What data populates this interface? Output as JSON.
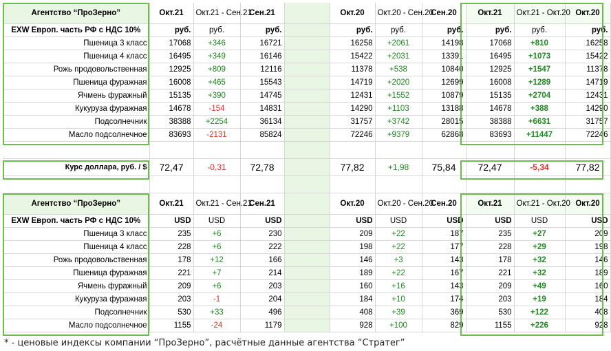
{
  "headers": {
    "title": "Агентство “ПроЗерно”",
    "col1": "Окт.21",
    "col2": "Окт.21 - Сен.21",
    "col3": "Сен.21",
    "col5": "Окт.20",
    "col6": "Окт.20 - Сен.20",
    "col7": "Сен.20",
    "col8": "Окт.21",
    "col9": "Окт.21 - Окт.20",
    "col10": "Окт.20"
  },
  "rub": {
    "exw": "EXW Европ. часть РФ с НДС 10%",
    "unit": "руб.",
    "rows": [
      {
        "name": "Пшеница 3 класс",
        "c1": "17068",
        "c2": "+346",
        "c3": "16721",
        "c5": "16258",
        "c6": "+2061",
        "c7": "14198",
        "c8": "17068",
        "c9": "+810",
        "c10": "16258"
      },
      {
        "name": "Пшеница 4 класс",
        "c1": "16495",
        "c2": "+349",
        "c3": "16146",
        "c5": "15422",
        "c6": "+2031",
        "c7": "13391",
        "c8": "16495",
        "c9": "+1073",
        "c10": "15422"
      },
      {
        "name": "Рожь продовольственная",
        "c1": "12925",
        "c2": "+809",
        "c3": "12116",
        "c5": "11378",
        "c6": "+538",
        "c7": "10840",
        "c8": "12925",
        "c9": "+1547",
        "c10": "11378"
      },
      {
        "name": "Пшеница фуражная",
        "c1": "16008",
        "c2": "+465",
        "c3": "15543",
        "c5": "14719",
        "c6": "+2020",
        "c7": "12699",
        "c8": "16008",
        "c9": "+1289",
        "c10": "14719"
      },
      {
        "name": "Ячмень фуражный",
        "c1": "15135",
        "c2": "+390",
        "c3": "14745",
        "c5": "12431",
        "c6": "+1552",
        "c7": "10879",
        "c8": "15135",
        "c9": "+2704",
        "c10": "12431"
      },
      {
        "name": "Кукуруза фуражная",
        "c1": "14678",
        "c2": "-154",
        "c3": "14831",
        "c5": "14290",
        "c6": "+1103",
        "c7": "13188",
        "c8": "14678",
        "c9": "+388",
        "c10": "14290"
      },
      {
        "name": "Подсолнечник",
        "c1": "38388",
        "c2": "+2254",
        "c3": "36134",
        "c5": "31757",
        "c6": "+3742",
        "c7": "28015",
        "c8": "38388",
        "c9": "+6631",
        "c10": "31757"
      },
      {
        "name": "Масло подсолнечное",
        "c1": "83693",
        "c2": "-2131",
        "c3": "85824",
        "c5": "72246",
        "c6": "+9379",
        "c7": "62868",
        "c8": "83693",
        "c9": "+11447",
        "c10": "72246"
      }
    ]
  },
  "fx": {
    "name": "Курс доллара, руб. / $",
    "c1": "72,47",
    "c2": "-0,31",
    "c3": "72,78",
    "c5": "77,82",
    "c6": "+1,98",
    "c7": "75,84",
    "c8": "72,47",
    "c9": "-5,34",
    "c10": "77,82"
  },
  "usd": {
    "exw": "EXW Европ. часть РФ с НДС 10%",
    "unit": "USD",
    "rows": [
      {
        "name": "Пшеница 3 класс",
        "c1": "235",
        "c2": "+6",
        "c3": "230",
        "c5": "209",
        "c6": "+22",
        "c7": "187",
        "c8": "235",
        "c9": "+27",
        "c10": "209"
      },
      {
        "name": "Пшеница 4 класс",
        "c1": "228",
        "c2": "+6",
        "c3": "222",
        "c5": "198",
        "c6": "+22",
        "c7": "177",
        "c8": "228",
        "c9": "+29",
        "c10": "198"
      },
      {
        "name": "Рожь продовольственная",
        "c1": "178",
        "c2": "+12",
        "c3": "166",
        "c5": "146",
        "c6": "+3",
        "c7": "143",
        "c8": "178",
        "c9": "+32",
        "c10": "146"
      },
      {
        "name": "Пшеница фуражная",
        "c1": "221",
        "c2": "+7",
        "c3": "214",
        "c5": "189",
        "c6": "+22",
        "c7": "167",
        "c8": "221",
        "c9": "+32",
        "c10": "189"
      },
      {
        "name": "Ячмень фуражный",
        "c1": "209",
        "c2": "+6",
        "c3": "203",
        "c5": "160",
        "c6": "+16",
        "c7": "143",
        "c8": "209",
        "c9": "+49",
        "c10": "160"
      },
      {
        "name": "Кукуруза фуражная",
        "c1": "203",
        "c2": "-1",
        "c3": "204",
        "c5": "184",
        "c6": "+10",
        "c7": "174",
        "c8": "203",
        "c9": "+19",
        "c10": "184"
      },
      {
        "name": "Подсолнечник",
        "c1": "530",
        "c2": "+33",
        "c3": "496",
        "c5": "408",
        "c6": "+39",
        "c7": "369",
        "c8": "530",
        "c9": "+122",
        "c10": "408"
      },
      {
        "name": "Масло подсолнечное",
        "c1": "1155",
        "c2": "-24",
        "c3": "1179",
        "c5": "928",
        "c6": "+100",
        "c7": "829",
        "c8": "1155",
        "c9": "+226",
        "c10": "928"
      }
    ]
  },
  "footnote": "* - ценовые индексы компании “ПроЗерно”, расчётные данные агентства “Стратег”"
}
